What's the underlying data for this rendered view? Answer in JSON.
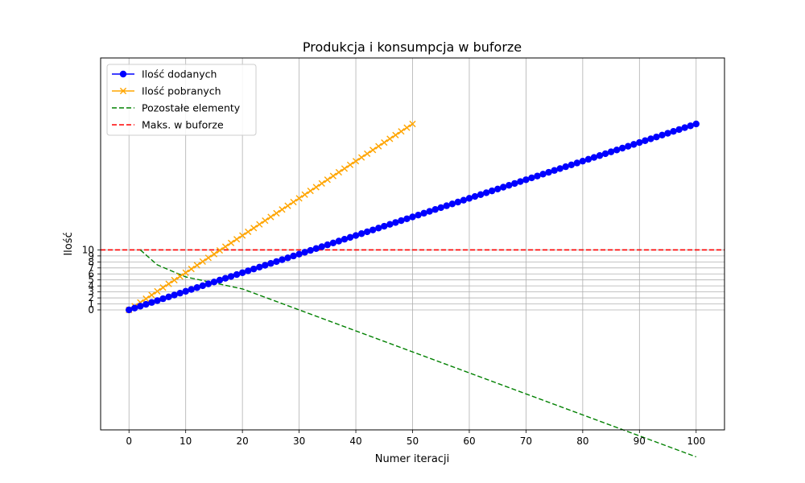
{
  "chart_data": {
    "type": "line",
    "title": "Produkcja i konsumpcja w buforze",
    "xlabel": "Numer iteracji",
    "ylabel": "Ilość",
    "xlim": [
      -5,
      105
    ],
    "ylim": [
      -20,
      42
    ],
    "grid": true,
    "legend_position": "top-left",
    "x_ticks": [
      0,
      10,
      20,
      30,
      40,
      50,
      60,
      70,
      80,
      90,
      100
    ],
    "y_ticks": [
      0,
      1,
      2,
      3,
      4,
      5,
      6,
      7,
      8,
      9,
      10
    ],
    "y_tick_labels": [
      "0",
      "1",
      "2",
      "3",
      "4",
      "5",
      "6",
      "7",
      "8",
      "9",
      "10"
    ],
    "series": [
      {
        "name": "Ilość dodanych",
        "color": "#0000ff",
        "style": "solid",
        "marker": "circle",
        "x_start": 0,
        "x_end": 100,
        "x_step": 1,
        "y_start": 0,
        "y_end": 31
      },
      {
        "name": "Ilość pobranych",
        "color": "#ffa500",
        "style": "solid",
        "marker": "x",
        "x_start": 0,
        "x_end": 50,
        "x_step": 1,
        "y_start": 0,
        "y_end": 31
      },
      {
        "name": "Pozostałe elementy",
        "color": "#008000",
        "style": "dashed",
        "marker": "none",
        "x": [
          2,
          5,
          10,
          20,
          30,
          40,
          50,
          60,
          70,
          80,
          90,
          100
        ],
        "y": [
          10,
          7.5,
          5.5,
          3.5,
          0,
          -3.5,
          -7,
          -10.5,
          -14,
          -17.5,
          -21,
          -24.5
        ]
      },
      {
        "name": "Maks. w buforze",
        "color": "#ff0000",
        "style": "dashed",
        "marker": "none",
        "hline": 10
      }
    ]
  }
}
